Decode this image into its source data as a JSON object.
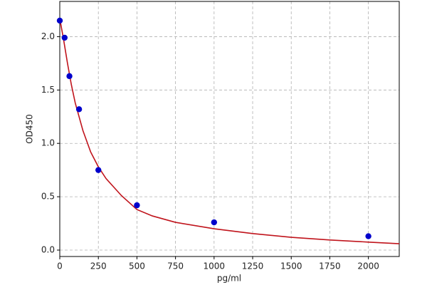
{
  "chart_data": {
    "type": "scatter",
    "x_label": "pg/ml",
    "y_label": "OD450",
    "xlim": [
      0,
      2200
    ],
    "ylim": [
      -0.06,
      2.33
    ],
    "xticks": [
      0,
      250,
      500,
      750,
      1000,
      1250,
      1500,
      1750,
      2000
    ],
    "yticks": [
      {
        "value": 0,
        "label": "0.0"
      },
      0.5,
      {
        "value": 1,
        "label": "1.0"
      },
      1.5,
      {
        "value": 2,
        "label": "2.0"
      }
    ],
    "grid": true,
    "series": [
      {
        "type": "scatter",
        "color": "#0000cc",
        "x": [
          0,
          31.25,
          62.5,
          125,
          250,
          500,
          1000,
          2000
        ],
        "values": [
          2.15,
          1.99,
          1.63,
          1.32,
          0.75,
          0.42,
          0.26,
          0.13
        ]
      },
      {
        "type": "line",
        "color": "#c0141c",
        "x": [
          0,
          25,
          50,
          75,
          100,
          150,
          200,
          250,
          300,
          400,
          500,
          600,
          750,
          1000,
          1250,
          1500,
          1750,
          2000,
          2200
        ],
        "values": [
          2.17,
          1.97,
          1.75,
          1.55,
          1.38,
          1.12,
          0.92,
          0.78,
          0.67,
          0.51,
          0.38,
          0.32,
          0.26,
          0.2,
          0.155,
          0.12,
          0.095,
          0.075,
          0.06
        ]
      }
    ]
  }
}
